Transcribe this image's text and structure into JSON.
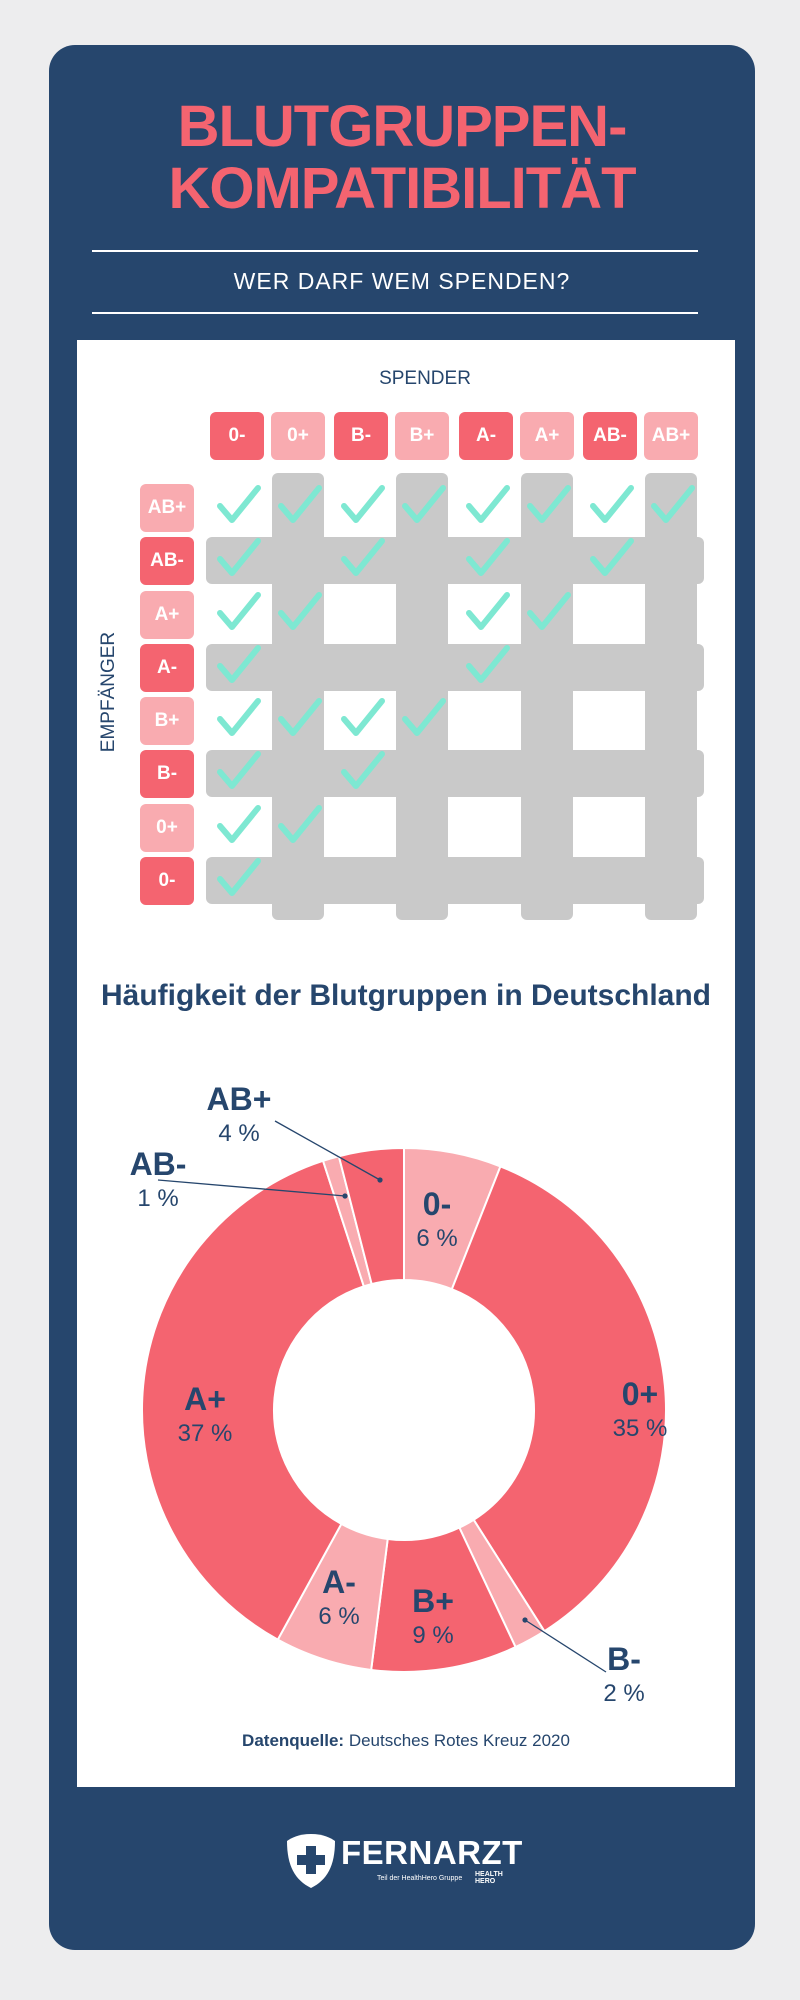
{
  "header": {
    "title_line1": "BLUTGRUPPEN-",
    "title_line2": "KOMPATIBILITÄT",
    "subtitle": "WER DARF WEM SPENDEN?"
  },
  "matrix": {
    "donor_label": "SPENDER",
    "recipient_label": "EMPFÄNGER",
    "donors": [
      "0-",
      "0+",
      "B-",
      "B+",
      "A-",
      "A+",
      "AB-",
      "AB+"
    ],
    "recipients": [
      "AB+",
      "AB-",
      "A+",
      "A-",
      "B+",
      "B-",
      "0+",
      "0-"
    ],
    "compatible": [
      [
        1,
        1,
        1,
        1,
        1,
        1,
        1,
        1
      ],
      [
        1,
        0,
        1,
        0,
        1,
        0,
        1,
        0
      ],
      [
        1,
        1,
        0,
        0,
        1,
        1,
        0,
        0
      ],
      [
        1,
        0,
        0,
        0,
        1,
        0,
        0,
        0
      ],
      [
        1,
        1,
        1,
        1,
        0,
        0,
        0,
        0
      ],
      [
        1,
        0,
        1,
        0,
        0,
        0,
        0,
        0
      ],
      [
        1,
        1,
        0,
        0,
        0,
        0,
        0,
        0
      ],
      [
        1,
        0,
        0,
        0,
        0,
        0,
        0,
        0
      ]
    ],
    "colors": {
      "negative": "#f46470",
      "positive": "#f9abb0",
      "check": "#7ee8d2",
      "stripe": "#c9c9c9"
    }
  },
  "chart_data": {
    "type": "pie",
    "title": "Häufigkeit der Blutgruppen in Deutschland",
    "unit": "%",
    "slices": [
      {
        "label": "0-",
        "value": 6,
        "display": "6 %"
      },
      {
        "label": "0+",
        "value": 35,
        "display": "35 %"
      },
      {
        "label": "B-",
        "value": 2,
        "display": "2 %"
      },
      {
        "label": "B+",
        "value": 9,
        "display": "9 %"
      },
      {
        "label": "A-",
        "value": 6,
        "display": "6 %"
      },
      {
        "label": "A+",
        "value": 37,
        "display": "37 %"
      },
      {
        "label": "AB-",
        "value": 1,
        "display": "1 %"
      },
      {
        "label": "AB+",
        "value": 4,
        "display": "4 %"
      }
    ]
  },
  "source": {
    "prefix": "Datenquelle:",
    "text": "Deutsches Rotes Kreuz 2020"
  },
  "footer": {
    "brand": "FERNARZT",
    "tagline": "Teil der HealthHero Gruppe",
    "partner_line1": "HEALTH",
    "partner_line2": "HERO"
  }
}
